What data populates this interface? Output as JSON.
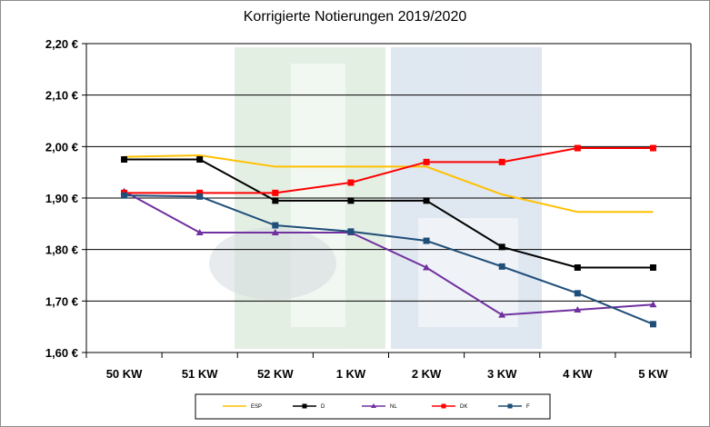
{
  "chart_data": {
    "type": "line",
    "title": "Korrigierte Notierungen 2019/2020",
    "categories": [
      "50 KW",
      "51 KW",
      "52 KW",
      "1 KW",
      "2 KW",
      "3 KW",
      "4 KW",
      "5 KW"
    ],
    "ylim": [
      1.6,
      2.2
    ],
    "yticks": [
      "1,60 €",
      "1,70 €",
      "1,80 €",
      "1,90 €",
      "2,00 €",
      "2,10 €",
      "2,20 €"
    ],
    "ytick_values": [
      1.6,
      1.7,
      1.8,
      1.9,
      2.0,
      2.1,
      2.2
    ],
    "grid": true,
    "legend_position": "bottom",
    "series": [
      {
        "name": "ESP",
        "color": "#ffc000",
        "marker": "none",
        "values": [
          1.98,
          1.983,
          1.961,
          1.961,
          1.961,
          1.907,
          1.873,
          1.873
        ]
      },
      {
        "name": "D",
        "color": "#000000",
        "marker": "square",
        "values": [
          1.975,
          1.975,
          1.895,
          1.895,
          1.895,
          1.805,
          1.765,
          1.765
        ]
      },
      {
        "name": "NL",
        "color": "#7030a0",
        "marker": "triangle",
        "values": [
          1.913,
          1.833,
          1.833,
          1.833,
          1.765,
          1.673,
          1.683,
          1.693
        ]
      },
      {
        "name": "DK",
        "color": "#ff0000",
        "marker": "square",
        "values": [
          1.91,
          1.91,
          1.91,
          1.93,
          1.97,
          1.97,
          1.997,
          1.997
        ]
      },
      {
        "name": "F",
        "color": "#1f4e79",
        "marker": "square",
        "values": [
          1.905,
          1.903,
          1.847,
          1.835,
          1.817,
          1.767,
          1.715,
          1.655
        ]
      }
    ]
  }
}
